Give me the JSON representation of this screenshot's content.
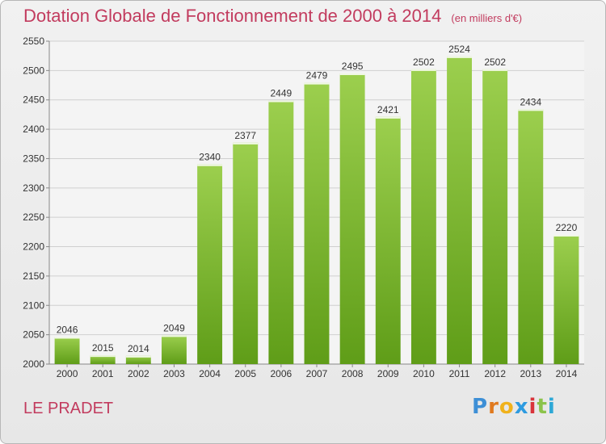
{
  "title": "Dotation Globale de Fonctionnement de 2000 à 2014",
  "unit": "(en milliers d'€)",
  "location": "LE PRADET",
  "brand": {
    "text": "Proxiti",
    "letters": [
      "P",
      "r",
      "o",
      "x",
      "i",
      "t",
      "i"
    ],
    "colors": [
      "#3d8fd6",
      "#e07a1f",
      "#f0b21c",
      "#2e9be0",
      "#d9343b",
      "#8bc34a",
      "#2ea8d6"
    ]
  },
  "colors": {
    "title": "#c23b5e",
    "bar_top": "#9ccf4e",
    "bar_bottom": "#5f9d18",
    "grid": "#cfcfcf"
  },
  "chart_data": {
    "type": "bar",
    "categories": [
      "2000",
      "2001",
      "2002",
      "2003",
      "2004",
      "2005",
      "2006",
      "2007",
      "2008",
      "2009",
      "2010",
      "2011",
      "2012",
      "2013",
      "2014"
    ],
    "values": [
      2046,
      2015,
      2014,
      2049,
      2340,
      2377,
      2449,
      2479,
      2495,
      2421,
      2502,
      2524,
      2502,
      2434,
      2220
    ],
    "title": "Dotation Globale de Fonctionnement de 2000 à 2014",
    "xlabel": "",
    "ylabel": "",
    "ylim": [
      2000,
      2550
    ],
    "yticks": [
      2000,
      2050,
      2100,
      2150,
      2200,
      2250,
      2300,
      2350,
      2400,
      2450,
      2500,
      2550
    ],
    "grid": true,
    "legend": "none"
  }
}
